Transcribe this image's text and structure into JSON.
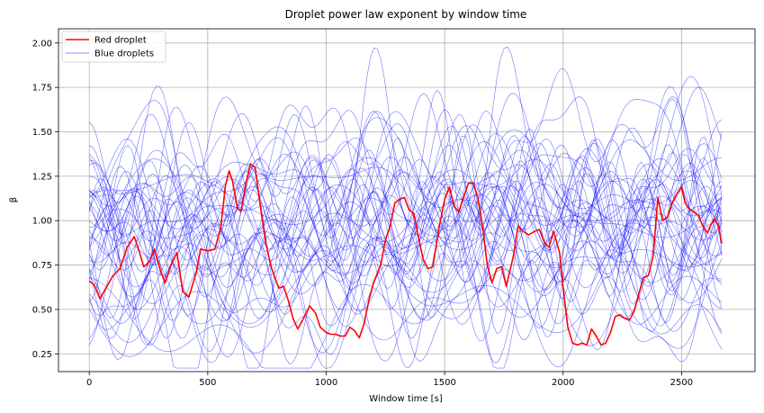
{
  "chart_data": {
    "type": "line",
    "title": "Droplet power law exponent by window time",
    "xlabel": "Window time [s]",
    "ylabel": "β",
    "xlim": [
      -130,
      2810
    ],
    "ylim": [
      0.15,
      2.08
    ],
    "x_ticks": [
      0,
      500,
      1000,
      1500,
      2000,
      2500
    ],
    "x_tick_labels": [
      "0",
      "500",
      "1000",
      "1500",
      "2000",
      "2500"
    ],
    "y_ticks": [
      0.25,
      0.5,
      0.75,
      1.0,
      1.25,
      1.5,
      1.75,
      2.0
    ],
    "y_tick_labels": [
      "0.25",
      "0.50",
      "0.75",
      "1.00",
      "1.25",
      "1.50",
      "1.75",
      "2.00"
    ],
    "grid": true,
    "legend_position": "top-left",
    "legend": [
      {
        "label": "Red droplet",
        "color": "#ff0000"
      },
      {
        "label": "Blue droplets",
        "color": "#0000ff"
      }
    ],
    "red_series": {
      "name": "Red droplet",
      "color": "#ff0000",
      "x": [
        0,
        20,
        45,
        70,
        100,
        130,
        160,
        190,
        210,
        230,
        255,
        275,
        300,
        320,
        345,
        370,
        395,
        420,
        450,
        470,
        500,
        530,
        555,
        575,
        590,
        605,
        625,
        640,
        660,
        680,
        700,
        720,
        745,
        770,
        800,
        820,
        840,
        860,
        880,
        900,
        930,
        955,
        975,
        1000,
        1020,
        1040,
        1060,
        1080,
        1100,
        1120,
        1140,
        1160,
        1180,
        1200,
        1230,
        1250,
        1270,
        1290,
        1310,
        1330,
        1350,
        1370,
        1390,
        1410,
        1430,
        1450,
        1475,
        1500,
        1520,
        1540,
        1560,
        1580,
        1600,
        1620,
        1640,
        1660,
        1680,
        1700,
        1720,
        1740,
        1760,
        1790,
        1810,
        1830,
        1855,
        1880,
        1900,
        1920,
        1940,
        1960,
        1985,
        2000,
        2020,
        2040,
        2060,
        2080,
        2100,
        2120,
        2140,
        2160,
        2180,
        2200,
        2220,
        2240,
        2260,
        2280,
        2300,
        2320,
        2340,
        2360,
        2380,
        2400,
        2420,
        2440,
        2460,
        2480,
        2500,
        2515,
        2530,
        2550,
        2570,
        2590,
        2610,
        2625,
        2640,
        2655,
        2670
      ],
      "y": [
        0.66,
        0.64,
        0.56,
        0.62,
        0.69,
        0.73,
        0.85,
        0.91,
        0.83,
        0.74,
        0.77,
        0.84,
        0.72,
        0.65,
        0.75,
        0.82,
        0.6,
        0.57,
        0.7,
        0.84,
        0.83,
        0.84,
        0.96,
        1.2,
        1.28,
        1.22,
        1.07,
        1.05,
        1.2,
        1.32,
        1.3,
        1.1,
        0.87,
        0.73,
        0.62,
        0.63,
        0.55,
        0.45,
        0.39,
        0.44,
        0.52,
        0.48,
        0.4,
        0.37,
        0.36,
        0.36,
        0.35,
        0.35,
        0.4,
        0.38,
        0.34,
        0.42,
        0.55,
        0.65,
        0.75,
        0.89,
        0.97,
        1.1,
        1.12,
        1.13,
        1.06,
        1.04,
        0.9,
        0.78,
        0.73,
        0.74,
        0.95,
        1.12,
        1.19,
        1.08,
        1.05,
        1.13,
        1.21,
        1.21,
        1.13,
        0.97,
        0.75,
        0.65,
        0.73,
        0.74,
        0.63,
        0.8,
        0.97,
        0.94,
        0.92,
        0.94,
        0.95,
        0.88,
        0.85,
        0.94,
        0.82,
        0.62,
        0.4,
        0.31,
        0.3,
        0.31,
        0.3,
        0.39,
        0.35,
        0.3,
        0.31,
        0.37,
        0.46,
        0.47,
        0.45,
        0.44,
        0.49,
        0.59,
        0.68,
        0.69,
        0.8,
        1.13,
        1.0,
        1.02,
        1.1,
        1.15,
        1.19,
        1.1,
        1.07,
        1.05,
        1.03,
        0.97,
        0.93,
        0.98,
        1.01,
        0.97,
        0.87
      ]
    },
    "blue_series": {
      "name": "Blue droplets",
      "color": "#0000ff",
      "count": 44,
      "x_start": 0,
      "x_end": 2670,
      "y_min": 0.17,
      "y_max": 1.99
    }
  }
}
